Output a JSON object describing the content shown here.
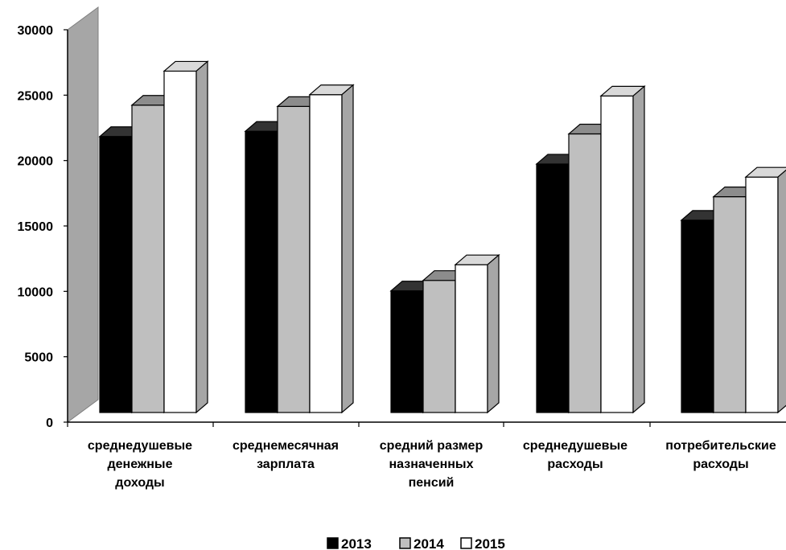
{
  "chart_data": {
    "type": "bar",
    "style": "3d-clustered-column",
    "categories": [
      [
        "среднедушевые",
        "денежные",
        "доходы"
      ],
      [
        "среднемесячная",
        "зарплата"
      ],
      [
        "средний размер",
        "назначенных",
        "пенсий"
      ],
      [
        "среднедушевые",
        "расходы"
      ],
      [
        "потребительские",
        "расходы"
      ]
    ],
    "series": [
      {
        "name": "2013",
        "color": "#000000",
        "top_color": "#333333",
        "side_color": "#1a1a1a",
        "values": [
          21100,
          21500,
          9300,
          19000,
          14700
        ]
      },
      {
        "name": "2014",
        "color": "#bfbfbf",
        "top_color": "#8c8c8c",
        "side_color": "#8c8c8c",
        "values": [
          23500,
          23400,
          10100,
          21300,
          16500
        ]
      },
      {
        "name": "2015",
        "color": "#ffffff",
        "top_color": "#d9d9d9",
        "side_color": "#a6a6a6",
        "values": [
          26100,
          24300,
          11300,
          24200,
          18000
        ]
      }
    ],
    "yticks": [
      "0",
      "5000",
      "10000",
      "15000",
      "20000",
      "25000",
      "30000"
    ],
    "ylim": [
      0,
      30000
    ],
    "grid": false,
    "legend_position": "bottom",
    "wall_color": "#a6a6a6"
  }
}
